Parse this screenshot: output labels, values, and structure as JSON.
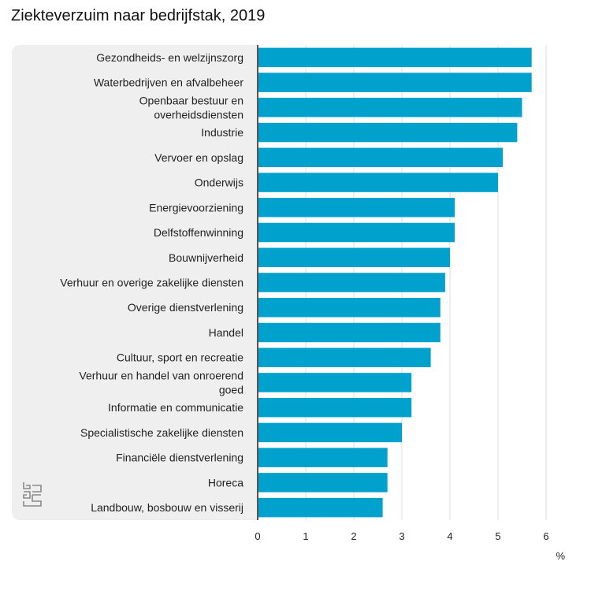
{
  "chart_data": {
    "type": "bar",
    "orientation": "horizontal",
    "title": "Ziekteverzuim naar bedrijfstak, 2019",
    "xlabel": "%",
    "xlim": [
      0,
      6
    ],
    "xticks": [
      "0",
      "1",
      "2",
      "3",
      "4",
      "5",
      "6"
    ],
    "grid": true,
    "bar_color": "#00a1cd",
    "categories": [
      [
        "Gezondheids- en welzijnszorg"
      ],
      [
        "Waterbedrijven en afvalbeheer"
      ],
      [
        "Openbaar bestuur en",
        "overheidsdiensten"
      ],
      [
        "Industrie"
      ],
      [
        "Vervoer en opslag"
      ],
      [
        "Onderwijs"
      ],
      [
        "Energievoorziening"
      ],
      [
        "Delfstoffenwinning"
      ],
      [
        "Bouwnijverheid"
      ],
      [
        "Verhuur en overige zakelijke diensten"
      ],
      [
        "Overige dienstverlening"
      ],
      [
        "Handel"
      ],
      [
        "Cultuur, sport en recreatie"
      ],
      [
        "Verhuur en handel van onroerend",
        "goed"
      ],
      [
        "Informatie en communicatie"
      ],
      [
        "Specialistische zakelijke diensten"
      ],
      [
        "Financiële dienstverlening"
      ],
      [
        "Horeca"
      ],
      [
        "Landbouw, bosbouw en visserij"
      ]
    ],
    "values": [
      5.7,
      5.7,
      5.5,
      5.4,
      5.1,
      5.0,
      4.1,
      4.1,
      4.0,
      3.9,
      3.8,
      3.8,
      3.6,
      3.2,
      3.2,
      3.0,
      2.7,
      2.7,
      2.6
    ]
  },
  "logo": {
    "icon": "cbs-logo-icon"
  }
}
